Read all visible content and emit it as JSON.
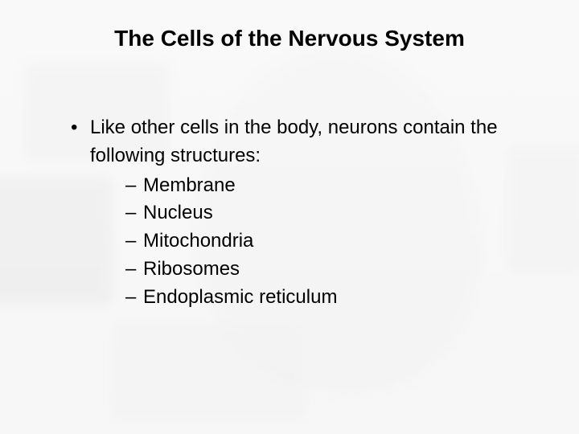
{
  "colors": {
    "background": "#f2f2f2",
    "text": "#000000"
  },
  "typography": {
    "family": "Arial",
    "title_size_pt": 28,
    "title_weight": "bold",
    "body_size_pt": 24,
    "line_height": 1.45
  },
  "slide": {
    "title": "The Cells of the Nervous System",
    "bullet_intro": "Like other cells in the body, neurons contain the following structures:",
    "sub_items": {
      "0": "Membrane",
      "1": "Nucleus",
      "2": "Mitochondria",
      "3": "Ribosomes",
      "4": "Endoplasmic reticulum"
    }
  }
}
